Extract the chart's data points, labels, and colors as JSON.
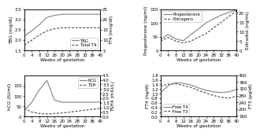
{
  "weeks": [
    0,
    4,
    8,
    12,
    16,
    20,
    24,
    28,
    32,
    36,
    40
  ],
  "panel1": {
    "TBG": [
      2.2,
      2.45,
      2.75,
      3.1,
      3.2,
      3.25,
      3.25,
      3.25,
      3.25,
      3.25,
      3.25
    ],
    "TotalT4": [
      7.5,
      10.0,
      12.5,
      14.5,
      15.5,
      16.0,
      16.0,
      16.0,
      16.0,
      16.0,
      16.0
    ],
    "ylim_left": [
      1.5,
      3.5
    ],
    "ylim_right": [
      5,
      25
    ],
    "yticks_left": [
      1.5,
      2.0,
      2.5,
      3.0,
      3.5
    ],
    "yticks_right": [
      5,
      10,
      15,
      20,
      25
    ],
    "ylabel_left": "TBG (mg/dl)",
    "ylabel_right": "TT4 (mcg/dl)",
    "legend": [
      "TBG",
      "Total T4"
    ],
    "legend_loc": "lower right",
    "xlabel": "Weeks of gestation"
  },
  "panel2": {
    "Progesterone": [
      40,
      58,
      42,
      35,
      58,
      78,
      100,
      115,
      128,
      138,
      147
    ],
    "Estrogens": [
      5,
      7,
      5,
      4,
      5,
      7,
      9,
      12,
      15,
      18,
      21
    ],
    "ylim_left": [
      0,
      150
    ],
    "ylim_right": [
      0,
      22
    ],
    "yticks_left": [
      0,
      50,
      100,
      150
    ],
    "yticks_right": [
      0,
      5,
      10,
      15,
      20
    ],
    "ylabel_left": "Progesterone (ng/ml)",
    "ylabel_right": "Estradiol (ng/ml)",
    "legend": [
      "Progesterone",
      "Estrogens"
    ],
    "legend_loc": "upper left",
    "xlabel": "Weeks of gestation"
  },
  "panel3": {
    "hCG": [
      30,
      70,
      130,
      175,
      80,
      70,
      70,
      70,
      70,
      70,
      70
    ],
    "TSH": [
      0.9,
      0.5,
      0.35,
      0.3,
      0.35,
      0.4,
      0.5,
      0.6,
      0.7,
      0.8,
      0.9
    ],
    "ylim_left": [
      0,
      200
    ],
    "ylim_right": [
      0,
      4.5
    ],
    "yticks_left": [
      0,
      50,
      100,
      150
    ],
    "yticks_right": [
      0.0,
      0.5,
      1.0,
      1.5,
      2.0,
      2.5,
      3.0,
      3.5,
      4.0,
      4.5
    ],
    "ylabel_left": "hCG (IU/ml)",
    "ylabel_right": "TSH4 (mIU/L)",
    "legend": [
      "hCG",
      "TSH"
    ],
    "legend_loc": "upper right",
    "xlabel": "Weeks of gestation"
  },
  "panel4": {
    "FT4": [
      1.05,
      1.35,
      1.48,
      1.45,
      1.38,
      1.25,
      1.15,
      1.08,
      1.05,
      1.08,
      1.18
    ],
    "FT3": [
      335,
      348,
      350,
      340,
      328,
      310,
      295,
      280,
      270,
      265,
      275
    ],
    "ylim_left": [
      0.0,
      1.8
    ],
    "ylim_right": [
      155,
      400
    ],
    "yticks_left": [
      0.0,
      0.2,
      0.4,
      0.6,
      0.8,
      1.0,
      1.2,
      1.4,
      1.6,
      1.8
    ],
    "yticks_right": [
      160,
      200,
      240,
      280,
      320,
      360,
      400
    ],
    "ylabel_left": "FT4 (ng/dl)",
    "ylabel_right": "FT3 (pg/dl)",
    "legend": [
      "Free T4",
      "Free T3"
    ],
    "legend_loc": "lower left",
    "xlabel": "Weeks of gestation"
  },
  "solid_color": "#888888",
  "dashed_color": "#555555",
  "bg_color": "#ffffff",
  "tick_fontsize": 4.0,
  "label_fontsize": 4.2,
  "legend_fontsize": 3.8,
  "linewidth": 0.85,
  "xticks": [
    0,
    4,
    8,
    12,
    16,
    20,
    24,
    28,
    32,
    36,
    40
  ]
}
